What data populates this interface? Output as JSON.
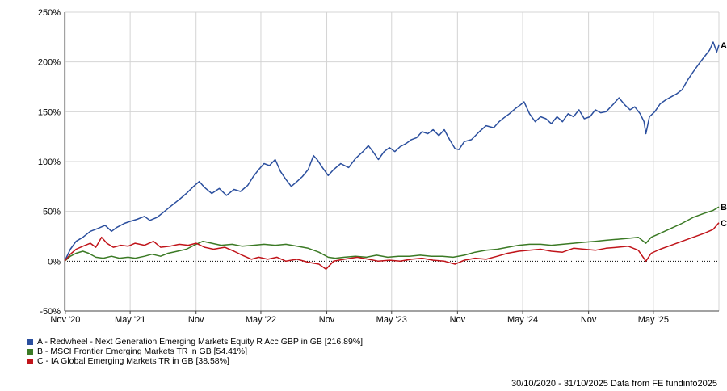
{
  "chart_data": {
    "type": "line",
    "y_tick_labels": [
      "250%",
      "200%",
      "150%",
      "100%",
      "50%",
      "0%",
      "-50%"
    ],
    "y_ticks": [
      250,
      200,
      150,
      100,
      50,
      0,
      -50
    ],
    "ylim": [
      -50,
      250
    ],
    "x_tick_labels": [
      "Nov '20",
      "May '21",
      "Nov",
      "May '22",
      "Nov",
      "May '23",
      "Nov",
      "May '24",
      "Nov",
      "May '25"
    ],
    "x_ticks": [
      "2020-11-01",
      "2021-05-01",
      "2021-11-01",
      "2022-05-01",
      "2022-11-01",
      "2023-05-01",
      "2023-11-01",
      "2024-05-01",
      "2024-11-01",
      "2025-05-01"
    ],
    "xlim": [
      "2020-10-30",
      "2025-10-31"
    ],
    "grid": true,
    "series": [
      {
        "name": "A - Redwheel - Next Generation Emerging Markets Equity R Acc GBP in GB [216.89%]",
        "end_label": "A",
        "color": "#2b4f9e",
        "points": [
          [
            "2020-10-30",
            0
          ],
          [
            "2020-11-15",
            12
          ],
          [
            "2020-12-01",
            20
          ],
          [
            "2020-12-20",
            24
          ],
          [
            "2021-01-10",
            30
          ],
          [
            "2021-02-01",
            33
          ],
          [
            "2021-02-20",
            36
          ],
          [
            "2021-03-10",
            30
          ],
          [
            "2021-03-25",
            34
          ],
          [
            "2021-04-15",
            38
          ],
          [
            "2021-05-01",
            40
          ],
          [
            "2021-05-20",
            42
          ],
          [
            "2021-06-10",
            45
          ],
          [
            "2021-06-25",
            41
          ],
          [
            "2021-07-15",
            44
          ],
          [
            "2021-08-05",
            50
          ],
          [
            "2021-08-25",
            56
          ],
          [
            "2021-09-15",
            62
          ],
          [
            "2021-10-05",
            68
          ],
          [
            "2021-10-25",
            75
          ],
          [
            "2021-11-10",
            80
          ],
          [
            "2021-11-25",
            74
          ],
          [
            "2021-12-15",
            68
          ],
          [
            "2022-01-05",
            73
          ],
          [
            "2022-01-25",
            66
          ],
          [
            "2022-02-15",
            72
          ],
          [
            "2022-03-05",
            70
          ],
          [
            "2022-03-25",
            76
          ],
          [
            "2022-04-10",
            85
          ],
          [
            "2022-04-25",
            92
          ],
          [
            "2022-05-10",
            98
          ],
          [
            "2022-05-25",
            96
          ],
          [
            "2022-06-10",
            102
          ],
          [
            "2022-06-25",
            90
          ],
          [
            "2022-07-10",
            82
          ],
          [
            "2022-07-25",
            75
          ],
          [
            "2022-08-10",
            80
          ],
          [
            "2022-08-25",
            85
          ],
          [
            "2022-09-10",
            92
          ],
          [
            "2022-09-25",
            106
          ],
          [
            "2022-10-05",
            102
          ],
          [
            "2022-10-20",
            94
          ],
          [
            "2022-11-05",
            86
          ],
          [
            "2022-11-20",
            92
          ],
          [
            "2022-12-10",
            98
          ],
          [
            "2023-01-01",
            94
          ],
          [
            "2023-01-20",
            103
          ],
          [
            "2023-02-10",
            110
          ],
          [
            "2023-02-25",
            116
          ],
          [
            "2023-03-10",
            110
          ],
          [
            "2023-03-25",
            102
          ],
          [
            "2023-04-10",
            110
          ],
          [
            "2023-04-25",
            114
          ],
          [
            "2023-05-10",
            110
          ],
          [
            "2023-05-25",
            115
          ],
          [
            "2023-06-10",
            118
          ],
          [
            "2023-06-25",
            122
          ],
          [
            "2023-07-10",
            124
          ],
          [
            "2023-07-25",
            130
          ],
          [
            "2023-08-10",
            128
          ],
          [
            "2023-08-25",
            132
          ],
          [
            "2023-09-10",
            126
          ],
          [
            "2023-09-25",
            132
          ],
          [
            "2023-10-10",
            122
          ],
          [
            "2023-10-25",
            113
          ],
          [
            "2023-11-05",
            112
          ],
          [
            "2023-11-20",
            120
          ],
          [
            "2023-12-10",
            122
          ],
          [
            "2024-01-01",
            130
          ],
          [
            "2024-01-20",
            136
          ],
          [
            "2024-02-10",
            134
          ],
          [
            "2024-02-25",
            140
          ],
          [
            "2024-03-10",
            144
          ],
          [
            "2024-03-25",
            148
          ],
          [
            "2024-04-10",
            153
          ],
          [
            "2024-04-25",
            157
          ],
          [
            "2024-05-05",
            160
          ],
          [
            "2024-05-20",
            148
          ],
          [
            "2024-06-05",
            140
          ],
          [
            "2024-06-20",
            145
          ],
          [
            "2024-07-05",
            143
          ],
          [
            "2024-07-20",
            138
          ],
          [
            "2024-08-05",
            145
          ],
          [
            "2024-08-20",
            140
          ],
          [
            "2024-09-05",
            148
          ],
          [
            "2024-09-20",
            145
          ],
          [
            "2024-10-05",
            152
          ],
          [
            "2024-10-20",
            143
          ],
          [
            "2024-11-05",
            145
          ],
          [
            "2024-11-20",
            152
          ],
          [
            "2024-12-05",
            149
          ],
          [
            "2024-12-20",
            150
          ],
          [
            "2025-01-10",
            158
          ],
          [
            "2025-01-25",
            164
          ],
          [
            "2025-02-10",
            157
          ],
          [
            "2025-02-25",
            152
          ],
          [
            "2025-03-10",
            155
          ],
          [
            "2025-03-25",
            148
          ],
          [
            "2025-04-05",
            140
          ],
          [
            "2025-04-10",
            128
          ],
          [
            "2025-04-20",
            145
          ],
          [
            "2025-05-05",
            150
          ],
          [
            "2025-05-20",
            158
          ],
          [
            "2025-06-05",
            162
          ],
          [
            "2025-06-20",
            165
          ],
          [
            "2025-07-05",
            168
          ],
          [
            "2025-07-20",
            172
          ],
          [
            "2025-08-05",
            182
          ],
          [
            "2025-08-20",
            190
          ],
          [
            "2025-09-05",
            198
          ],
          [
            "2025-09-20",
            205
          ],
          [
            "2025-10-05",
            212
          ],
          [
            "2025-10-15",
            220
          ],
          [
            "2025-10-25",
            210
          ],
          [
            "2025-10-31",
            216.89
          ]
        ]
      },
      {
        "name": "B - MSCI Frontier Emerging Markets TR in GB [54.41%]",
        "end_label": "B",
        "color": "#3b7a25",
        "points": [
          [
            "2020-10-30",
            0
          ],
          [
            "2020-11-15",
            5
          ],
          [
            "2020-12-01",
            8
          ],
          [
            "2020-12-20",
            10
          ],
          [
            "2021-01-05",
            8
          ],
          [
            "2021-01-25",
            4
          ],
          [
            "2021-02-15",
            3
          ],
          [
            "2021-03-10",
            5
          ],
          [
            "2021-04-01",
            3
          ],
          [
            "2021-04-25",
            4
          ],
          [
            "2021-05-15",
            3
          ],
          [
            "2021-06-10",
            5
          ],
          [
            "2021-07-01",
            7
          ],
          [
            "2021-07-25",
            5
          ],
          [
            "2021-08-15",
            8
          ],
          [
            "2021-09-10",
            10
          ],
          [
            "2021-10-05",
            12
          ],
          [
            "2021-11-01",
            17
          ],
          [
            "2021-11-20",
            20
          ],
          [
            "2021-12-15",
            18
          ],
          [
            "2022-01-10",
            16
          ],
          [
            "2022-02-10",
            17
          ],
          [
            "2022-03-10",
            15
          ],
          [
            "2022-04-10",
            16
          ],
          [
            "2022-05-10",
            17
          ],
          [
            "2022-06-10",
            16
          ],
          [
            "2022-07-10",
            17
          ],
          [
            "2022-08-10",
            15
          ],
          [
            "2022-09-10",
            13
          ],
          [
            "2022-10-10",
            9
          ],
          [
            "2022-11-05",
            4
          ],
          [
            "2022-11-25",
            3
          ],
          [
            "2022-12-20",
            4
          ],
          [
            "2023-01-20",
            5
          ],
          [
            "2023-02-20",
            4
          ],
          [
            "2023-03-20",
            6
          ],
          [
            "2023-04-20",
            4
          ],
          [
            "2023-05-20",
            5
          ],
          [
            "2023-06-20",
            5
          ],
          [
            "2023-07-20",
            6
          ],
          [
            "2023-08-20",
            5
          ],
          [
            "2023-09-20",
            5
          ],
          [
            "2023-10-20",
            4
          ],
          [
            "2023-11-20",
            6
          ],
          [
            "2023-12-20",
            9
          ],
          [
            "2024-01-20",
            11
          ],
          [
            "2024-02-20",
            12
          ],
          [
            "2024-03-20",
            14
          ],
          [
            "2024-04-20",
            16
          ],
          [
            "2024-05-20",
            17
          ],
          [
            "2024-06-20",
            17
          ],
          [
            "2024-07-20",
            16
          ],
          [
            "2024-08-20",
            17
          ],
          [
            "2024-09-20",
            18
          ],
          [
            "2024-10-20",
            19
          ],
          [
            "2024-11-20",
            20
          ],
          [
            "2024-12-20",
            21
          ],
          [
            "2025-01-20",
            22
          ],
          [
            "2025-02-20",
            23
          ],
          [
            "2025-03-20",
            24
          ],
          [
            "2025-04-10",
            18
          ],
          [
            "2025-04-25",
            24
          ],
          [
            "2025-05-20",
            28
          ],
          [
            "2025-06-20",
            33
          ],
          [
            "2025-07-20",
            38
          ],
          [
            "2025-08-20",
            44
          ],
          [
            "2025-09-20",
            48
          ],
          [
            "2025-10-15",
            51
          ],
          [
            "2025-10-31",
            54.41
          ]
        ]
      },
      {
        "name": "C - IA Global Emerging Markets TR in GB [38.58%]",
        "end_label": "C",
        "color": "#c0141a",
        "points": [
          [
            "2020-10-30",
            0
          ],
          [
            "2020-11-15",
            7
          ],
          [
            "2020-12-01",
            12
          ],
          [
            "2020-12-20",
            15
          ],
          [
            "2021-01-10",
            18
          ],
          [
            "2021-01-25",
            14
          ],
          [
            "2021-02-10",
            24
          ],
          [
            "2021-02-25",
            18
          ],
          [
            "2021-03-15",
            14
          ],
          [
            "2021-04-05",
            16
          ],
          [
            "2021-04-25",
            15
          ],
          [
            "2021-05-15",
            18
          ],
          [
            "2021-06-10",
            16
          ],
          [
            "2021-07-05",
            20
          ],
          [
            "2021-07-25",
            14
          ],
          [
            "2021-08-20",
            15
          ],
          [
            "2021-09-15",
            17
          ],
          [
            "2021-10-10",
            16
          ],
          [
            "2021-11-01",
            18
          ],
          [
            "2021-11-25",
            14
          ],
          [
            "2021-12-20",
            12
          ],
          [
            "2022-01-20",
            14
          ],
          [
            "2022-02-15",
            10
          ],
          [
            "2022-03-10",
            6
          ],
          [
            "2022-04-05",
            2
          ],
          [
            "2022-04-25",
            4
          ],
          [
            "2022-05-20",
            2
          ],
          [
            "2022-06-15",
            4
          ],
          [
            "2022-07-10",
            0
          ],
          [
            "2022-08-10",
            2
          ],
          [
            "2022-09-10",
            -1
          ],
          [
            "2022-10-10",
            -3
          ],
          [
            "2022-10-30",
            -8
          ],
          [
            "2022-11-20",
            0
          ],
          [
            "2022-12-20",
            2
          ],
          [
            "2023-01-25",
            4
          ],
          [
            "2023-02-25",
            2
          ],
          [
            "2023-03-25",
            0
          ],
          [
            "2023-04-25",
            1
          ],
          [
            "2023-05-25",
            0
          ],
          [
            "2023-06-25",
            2
          ],
          [
            "2023-07-25",
            3
          ],
          [
            "2023-08-25",
            1
          ],
          [
            "2023-09-25",
            0
          ],
          [
            "2023-10-25",
            -3
          ],
          [
            "2023-11-20",
            1
          ],
          [
            "2023-12-20",
            3
          ],
          [
            "2024-01-20",
            2
          ],
          [
            "2024-02-20",
            5
          ],
          [
            "2024-03-20",
            8
          ],
          [
            "2024-04-20",
            10
          ],
          [
            "2024-05-20",
            11
          ],
          [
            "2024-06-20",
            12
          ],
          [
            "2024-07-20",
            10
          ],
          [
            "2024-08-20",
            9
          ],
          [
            "2024-09-20",
            13
          ],
          [
            "2024-10-20",
            12
          ],
          [
            "2024-11-20",
            11
          ],
          [
            "2024-12-20",
            13
          ],
          [
            "2025-01-20",
            14
          ],
          [
            "2025-02-20",
            15
          ],
          [
            "2025-03-20",
            11
          ],
          [
            "2025-04-10",
            0
          ],
          [
            "2025-04-25",
            8
          ],
          [
            "2025-05-20",
            12
          ],
          [
            "2025-06-20",
            16
          ],
          [
            "2025-07-20",
            20
          ],
          [
            "2025-08-20",
            24
          ],
          [
            "2025-09-20",
            28
          ],
          [
            "2025-10-15",
            32
          ],
          [
            "2025-10-31",
            38.58
          ]
        ]
      }
    ]
  },
  "legend": [
    {
      "label": "A - Redwheel - Next Generation Emerging Markets Equity R Acc GBP in GB [216.89%]",
      "color": "#2b4f9e"
    },
    {
      "label": "B - MSCI Frontier Emerging Markets TR in GB [54.41%]",
      "color": "#3b7a25"
    },
    {
      "label": "C - IA Global Emerging Markets TR in GB [38.58%]",
      "color": "#c0141a"
    }
  ],
  "footer": "30/10/2020 - 31/10/2025 Data from FE fundinfo2025"
}
